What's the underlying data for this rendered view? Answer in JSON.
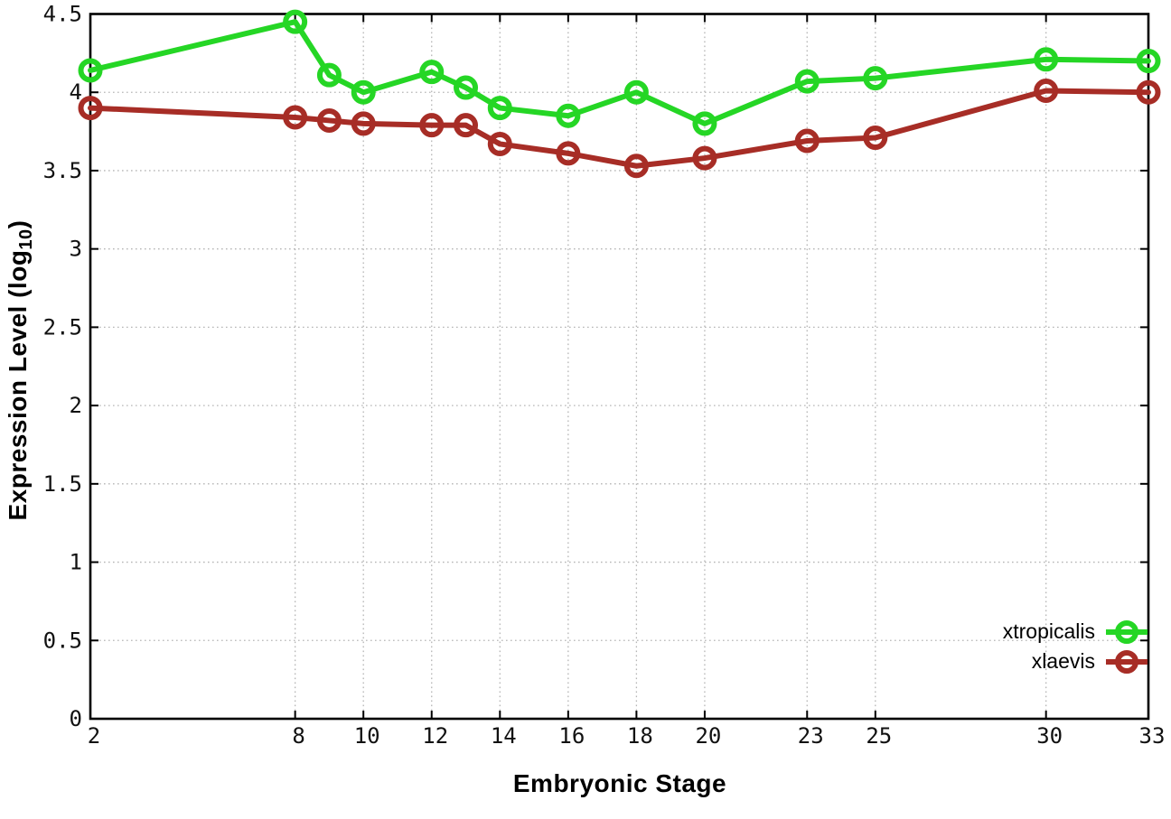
{
  "chart_data": {
    "type": "line",
    "title": "",
    "xlabel": "Embryonic Stage",
    "ylabel": "Expression Level (log10)",
    "ylabel_main": "Expression Level (log",
    "ylabel_sub": "10",
    "ylabel_end": ")",
    "x": [
      2,
      8,
      9,
      10,
      12,
      13,
      14,
      16,
      18,
      20,
      23,
      25,
      30,
      33
    ],
    "series": [
      {
        "name": "xtropicalis",
        "color": "#25d625",
        "values": [
          4.14,
          4.45,
          4.11,
          4.0,
          4.13,
          4.03,
          3.9,
          3.85,
          4.0,
          3.8,
          4.07,
          4.09,
          4.21,
          4.2
        ]
      },
      {
        "name": "xlaevis",
        "color": "#a72d26",
        "values": [
          3.9,
          3.84,
          3.82,
          3.8,
          3.79,
          3.79,
          3.67,
          3.61,
          3.53,
          3.58,
          3.69,
          3.71,
          4.01,
          4.0
        ]
      }
    ],
    "xlim": [
      2,
      33
    ],
    "ylim": [
      0,
      4.5
    ],
    "xticks": [
      2,
      8,
      10,
      12,
      14,
      16,
      18,
      20,
      23,
      25,
      30,
      33
    ],
    "yticks": [
      0,
      0.5,
      1,
      1.5,
      2,
      2.5,
      3,
      3.5,
      4,
      4.5
    ],
    "grid": true,
    "grid_color": "#b5b5b5",
    "axis_color": "#000000",
    "tick_label_color": "#111111",
    "legend_position": "bottom-right",
    "marker": "open-circle"
  }
}
